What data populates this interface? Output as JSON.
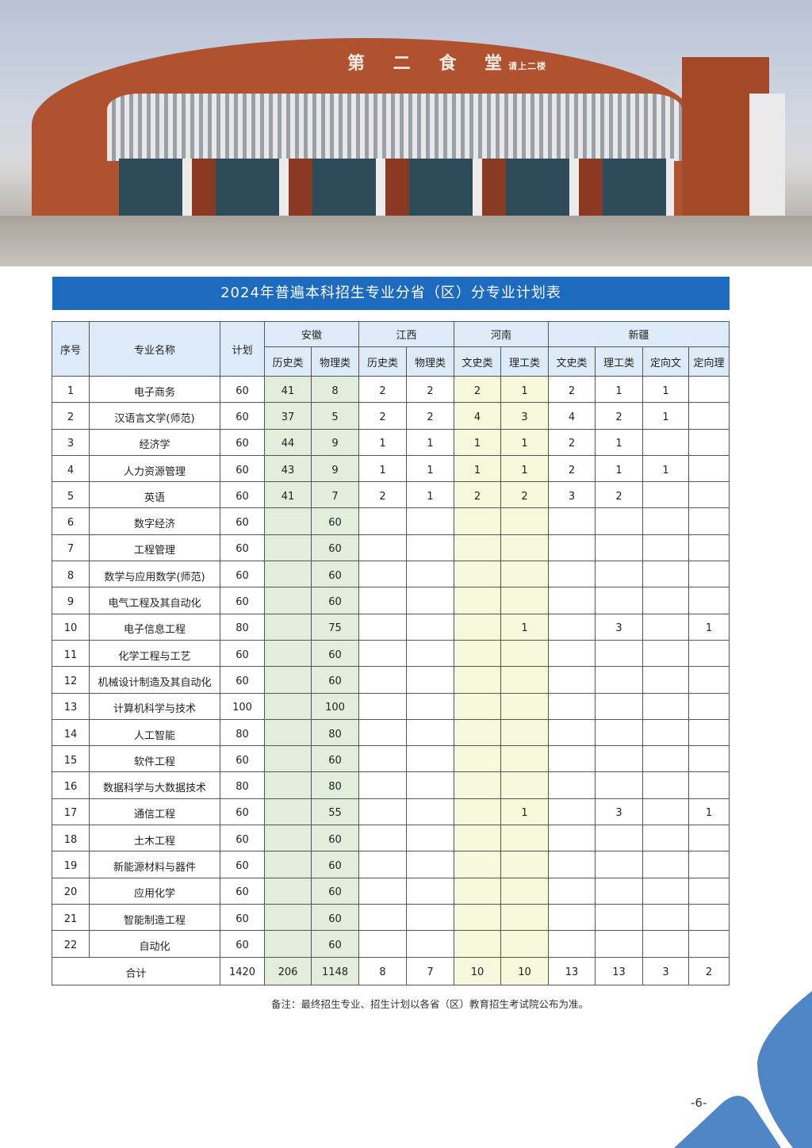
{
  "photo": {
    "sign_main": "第 二 食 堂",
    "sign_sub": "请上二楼"
  },
  "title": "2024年普遍本科招生专业分省（区）分专业计划表",
  "header": {
    "no": "序号",
    "name": "专业名称",
    "plan": "计划",
    "provinces": [
      "安徽",
      "江西",
      "河南",
      "新疆"
    ],
    "sub": [
      "历史类",
      "物理类",
      "历史类",
      "物理类",
      "文史类",
      "理工类",
      "文史类",
      "理工类",
      "定向文",
      "定向理"
    ]
  },
  "rows": [
    [
      "1",
      "电子商务",
      "60",
      "41",
      "8",
      "2",
      "2",
      "2",
      "1",
      "2",
      "1",
      "1",
      ""
    ],
    [
      "2",
      "汉语言文学(师范)",
      "60",
      "37",
      "5",
      "2",
      "2",
      "4",
      "3",
      "4",
      "2",
      "1",
      ""
    ],
    [
      "3",
      "经济学",
      "60",
      "44",
      "9",
      "1",
      "1",
      "1",
      "1",
      "2",
      "1",
      "",
      ""
    ],
    [
      "4",
      "人力资源管理",
      "60",
      "43",
      "9",
      "1",
      "1",
      "1",
      "1",
      "2",
      "1",
      "1",
      ""
    ],
    [
      "5",
      "英语",
      "60",
      "41",
      "7",
      "2",
      "1",
      "2",
      "2",
      "3",
      "2",
      "",
      ""
    ],
    [
      "6",
      "数字经济",
      "60",
      "",
      "60",
      "",
      "",
      "",
      "",
      "",
      "",
      "",
      ""
    ],
    [
      "7",
      "工程管理",
      "60",
      "",
      "60",
      "",
      "",
      "",
      "",
      "",
      "",
      "",
      ""
    ],
    [
      "8",
      "数学与应用数学(师范)",
      "60",
      "",
      "60",
      "",
      "",
      "",
      "",
      "",
      "",
      "",
      ""
    ],
    [
      "9",
      "电气工程及其自动化",
      "60",
      "",
      "60",
      "",
      "",
      "",
      "",
      "",
      "",
      "",
      ""
    ],
    [
      "10",
      "电子信息工程",
      "80",
      "",
      "75",
      "",
      "",
      "",
      "1",
      "",
      "3",
      "",
      "1"
    ],
    [
      "11",
      "化学工程与工艺",
      "60",
      "",
      "60",
      "",
      "",
      "",
      "",
      "",
      "",
      "",
      ""
    ],
    [
      "12",
      "机械设计制造及其自动化",
      "60",
      "",
      "60",
      "",
      "",
      "",
      "",
      "",
      "",
      "",
      ""
    ],
    [
      "13",
      "计算机科学与技术",
      "100",
      "",
      "100",
      "",
      "",
      "",
      "",
      "",
      "",
      "",
      ""
    ],
    [
      "14",
      "人工智能",
      "80",
      "",
      "80",
      "",
      "",
      "",
      "",
      "",
      "",
      "",
      ""
    ],
    [
      "15",
      "软件工程",
      "60",
      "",
      "60",
      "",
      "",
      "",
      "",
      "",
      "",
      "",
      ""
    ],
    [
      "16",
      "数据科学与大数据技术",
      "80",
      "",
      "80",
      "",
      "",
      "",
      "",
      "",
      "",
      "",
      ""
    ],
    [
      "17",
      "通信工程",
      "60",
      "",
      "55",
      "",
      "",
      "",
      "1",
      "",
      "3",
      "",
      "1"
    ],
    [
      "18",
      "土木工程",
      "60",
      "",
      "60",
      "",
      "",
      "",
      "",
      "",
      "",
      "",
      ""
    ],
    [
      "19",
      "新能源材料与器件",
      "60",
      "",
      "60",
      "",
      "",
      "",
      "",
      "",
      "",
      "",
      ""
    ],
    [
      "20",
      "应用化学",
      "60",
      "",
      "60",
      "",
      "",
      "",
      "",
      "",
      "",
      "",
      ""
    ],
    [
      "21",
      "智能制造工程",
      "60",
      "",
      "60",
      "",
      "",
      "",
      "",
      "",
      "",
      "",
      ""
    ],
    [
      "22",
      "自动化",
      "60",
      "",
      "60",
      "",
      "",
      "",
      "",
      "",
      "",
      "",
      ""
    ]
  ],
  "total": [
    "合计",
    "1420",
    "206",
    "1148",
    "8",
    "7",
    "10",
    "10",
    "13",
    "13",
    "3",
    "2"
  ],
  "note": "备注：最终招生专业、招生计划以各省（区）教育招生考试院公布为准。",
  "page_number": "-6-",
  "colors": {
    "banner": "#1c6bbf",
    "anhui_fill": "#e2eedb",
    "henan_fill": "#f7f8dc",
    "header_fill": "#dcebf7",
    "deco": "#4f86c6"
  }
}
